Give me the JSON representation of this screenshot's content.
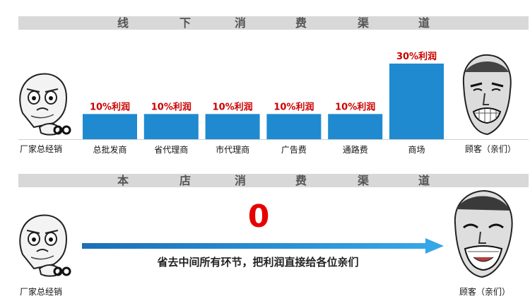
{
  "top_banner": [
    "线",
    "下",
    "消",
    "费",
    "渠",
    "道"
  ],
  "bottom_banner": [
    "本",
    "店",
    "消",
    "费",
    "渠",
    "道"
  ],
  "left_label": "厂家总经销",
  "right_label_top": "顾客（亲们）",
  "right_label_bottom": "顾客（亲们）",
  "chart_data": {
    "type": "bar",
    "categories": [
      "总批发商",
      "省代理商",
      "市代理商",
      "广告费",
      "通路费",
      "商场"
    ],
    "values": [
      10,
      10,
      10,
      10,
      10,
      30
    ],
    "data_labels": [
      "10%利润",
      "10%利润",
      "10%利润",
      "10%利润",
      "10%利润",
      "30%利润"
    ],
    "ylim": [
      0,
      37
    ],
    "grid": false,
    "bar_color": "#1f8ad0",
    "label_color": "#cc0000"
  },
  "bottom_section": {
    "value": "0",
    "caption": "省去中间所有环节，把利润直接给各位亲们",
    "arrow_color": "#1f8ad0",
    "value_color": "#e60000"
  }
}
